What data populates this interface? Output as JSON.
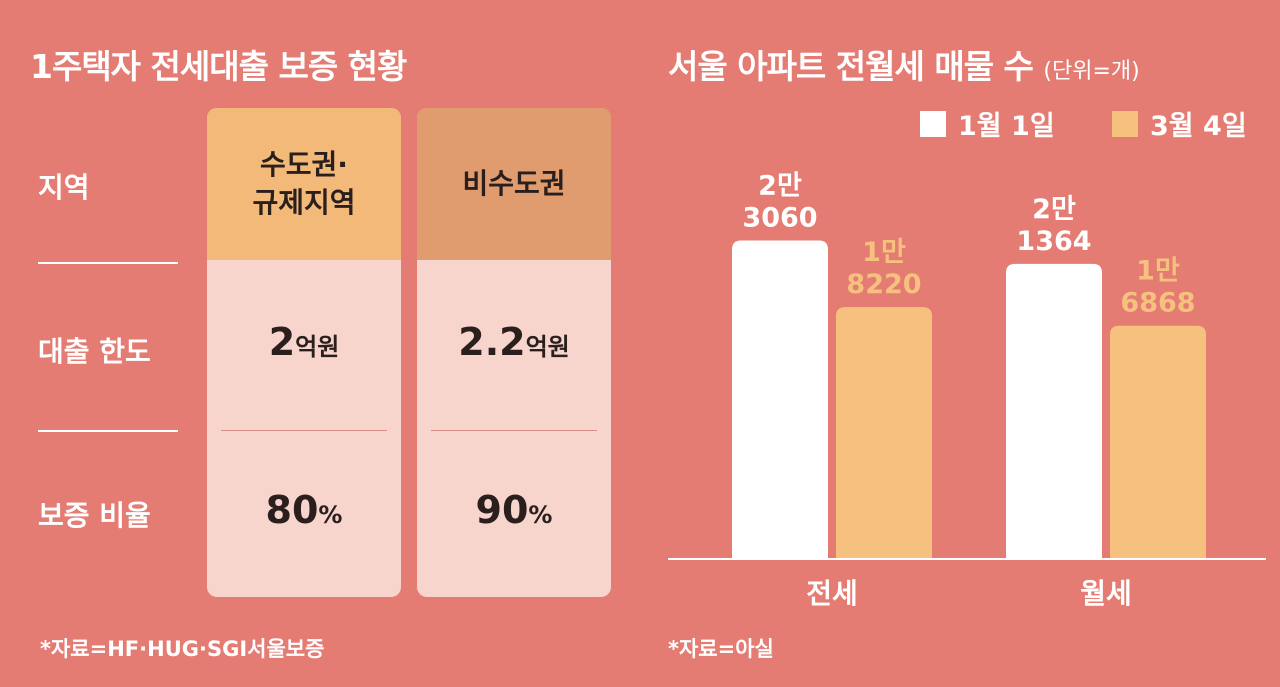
{
  "left": {
    "title": "1주택자 전세대출 보증 현황",
    "row_labels": [
      "지역",
      "대출 한도",
      "보증 비율"
    ],
    "columns": [
      {
        "header": "수도권·\n규제지역",
        "limit_num": "2",
        "limit_unit": "억원",
        "ratio_num": "80",
        "ratio_unit": "%",
        "color": "#f2b979"
      },
      {
        "header": "비수도권",
        "limit_num": "2.2",
        "limit_unit": "억원",
        "ratio_num": "90",
        "ratio_unit": "%",
        "color": "#e09c6e"
      }
    ],
    "source": "*자료=HF·HUG·SGI서울보증"
  },
  "right": {
    "title": "서울 아파트 전월세 매물 수",
    "unit": "(단위=개)",
    "source": "*자료=아실"
  },
  "chart_data": {
    "type": "bar",
    "title": "서울 아파트 전월세 매물 수",
    "unit": "(단위=개)",
    "categories": [
      "전세",
      "월세"
    ],
    "series": [
      {
        "name": "1월 1일",
        "values": [
          23060,
          21364
        ],
        "labels": [
          "2만\n3060",
          "2만\n1364"
        ],
        "color": "#ffffff"
      },
      {
        "name": "3월 4일",
        "values": [
          18220,
          16868
        ],
        "labels": [
          "1만\n8220",
          "1만\n6868"
        ],
        "color": "#f6c07f"
      }
    ],
    "ylim": [
      0,
      26000
    ],
    "legend": "top-right",
    "grid": false
  }
}
